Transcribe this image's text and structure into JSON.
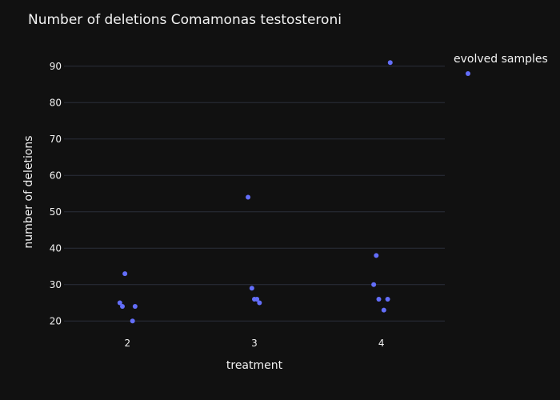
{
  "chart_data": {
    "type": "scatter",
    "title": "Number of deletions Comamonas testosteroni",
    "xlabel": "treatment",
    "ylabel": "number of deletions",
    "xlim": [
      1.5,
      4.5
    ],
    "ylim": [
      15,
      95
    ],
    "x_ticks": [
      2,
      3,
      4
    ],
    "y_ticks": [
      20,
      30,
      40,
      50,
      60,
      70,
      80,
      90
    ],
    "grid": "horizontal",
    "legend_placement": "top-right outside",
    "series": [
      {
        "name": "evolved samples",
        "color": "#636efa",
        "points": [
          {
            "x": 1.94,
            "y": 25
          },
          {
            "x": 1.96,
            "y": 24
          },
          {
            "x": 1.98,
            "y": 33
          },
          {
            "x": 2.04,
            "y": 20
          },
          {
            "x": 2.06,
            "y": 24
          },
          {
            "x": 2.95,
            "y": 54
          },
          {
            "x": 2.98,
            "y": 29
          },
          {
            "x": 3.0,
            "y": 26
          },
          {
            "x": 3.02,
            "y": 26
          },
          {
            "x": 3.04,
            "y": 25
          },
          {
            "x": 3.94,
            "y": 30
          },
          {
            "x": 3.96,
            "y": 38
          },
          {
            "x": 3.98,
            "y": 26
          },
          {
            "x": 4.02,
            "y": 23
          },
          {
            "x": 4.05,
            "y": 26
          },
          {
            "x": 4.07,
            "y": 91
          }
        ]
      }
    ]
  }
}
